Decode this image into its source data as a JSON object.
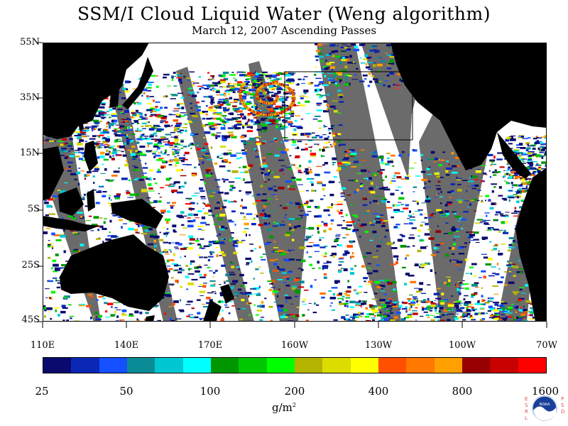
{
  "header": {
    "title": "SSM/I Cloud Liquid Water (Weng algorithm)",
    "subtitle": "March 12, 2007  Ascending Passes"
  },
  "map": {
    "lat_labels": [
      "55N",
      "35N",
      "15N",
      "5S",
      "25S",
      "45S"
    ],
    "lon_labels": [
      "110E",
      "140E",
      "170E",
      "160W",
      "130W",
      "100W",
      "70W"
    ],
    "colors": {
      "land": "#000000",
      "missing_swath_gap": "#6b6b6b",
      "clear_ocean": "#ffffff",
      "highlight_box": "#000000",
      "marker": "#ff3030"
    }
  },
  "colorbar": {
    "colors": [
      "#0a0a6e",
      "#0a28b4",
      "#1450ff",
      "#0a8c96",
      "#00c8d2",
      "#00ffff",
      "#009600",
      "#00c800",
      "#00ff00",
      "#b4b400",
      "#dcdc00",
      "#ffff00",
      "#ff5000",
      "#ff7800",
      "#ffa000",
      "#960000",
      "#c80000",
      "#ff0000"
    ],
    "tick_labels": [
      "25",
      "50",
      "100",
      "200",
      "400",
      "800",
      "1600"
    ],
    "unit_base": "g/m",
    "unit_exponent": "2"
  },
  "logo": {
    "name": "NOAA",
    "left_letters": "ESRL",
    "right_letters": "PSD"
  }
}
